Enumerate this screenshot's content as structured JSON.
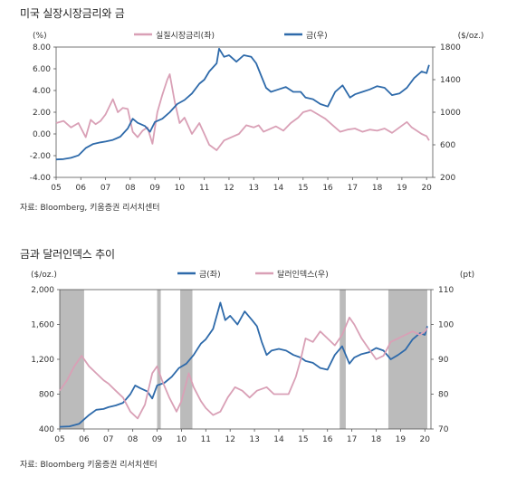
{
  "chart1": {
    "title": "미국 실장시장금리와 금",
    "source": "자료: Bloomberg, 키움증권 리서치센터",
    "left_unit": "(%)",
    "right_unit": "($/oz.)",
    "legend": {
      "series1": "실질시장금리(좌)",
      "series2": "금(우)"
    }
  },
  "chart2": {
    "title": "금과 달러인덱스 추이",
    "source": "자료: Bloomberg 키움증권 리서치센터",
    "left_unit": "($/oz.)",
    "right_unit": "(pt)",
    "legend": {
      "series1": "금(좌)",
      "series2": "달러인덱스(우)"
    }
  },
  "chart_data": [
    {
      "type": "line",
      "x_ticks": [
        "05",
        "06",
        "07",
        "08",
        "09",
        "10",
        "11",
        "12",
        "13",
        "14",
        "15",
        "16",
        "17",
        "18",
        "19",
        "20"
      ],
      "y_left_ticks": [
        "8.00",
        "6.00",
        "4.00",
        "2.00",
        "0.00",
        "-2.00",
        "-4.00"
      ],
      "y_left_range": [
        -4,
        8
      ],
      "y_right_ticks": [
        "1800",
        "1400",
        "1000",
        "600",
        "200"
      ],
      "y_right_range": [
        200,
        1800
      ],
      "colors": {
        "real_rate": "#d9a0b6",
        "gold": "#2e6aaa"
      },
      "series": [
        {
          "name": "실질시장금리(좌)",
          "axis": "left",
          "points": [
            [
              5.0,
              1.0
            ],
            [
              5.3,
              1.2
            ],
            [
              5.6,
              0.6
            ],
            [
              5.9,
              1.0
            ],
            [
              6.2,
              -0.3
            ],
            [
              6.4,
              1.3
            ],
            [
              6.6,
              0.9
            ],
            [
              6.8,
              1.2
            ],
            [
              7.0,
              1.8
            ],
            [
              7.3,
              3.2
            ],
            [
              7.5,
              2.0
            ],
            [
              7.7,
              2.4
            ],
            [
              7.9,
              2.3
            ],
            [
              8.1,
              0.2
            ],
            [
              8.3,
              -0.3
            ],
            [
              8.5,
              0.3
            ],
            [
              8.7,
              0.6
            ],
            [
              8.9,
              -0.9
            ],
            [
              9.1,
              2.0
            ],
            [
              9.3,
              3.6
            ],
            [
              9.5,
              5.0
            ],
            [
              9.6,
              5.5
            ],
            [
              9.8,
              3.0
            ],
            [
              10.0,
              1.0
            ],
            [
              10.2,
              1.5
            ],
            [
              10.5,
              0.0
            ],
            [
              10.8,
              1.0
            ],
            [
              11.0,
              0.0
            ],
            [
              11.2,
              -1.0
            ],
            [
              11.5,
              -1.5
            ],
            [
              11.8,
              -0.6
            ],
            [
              12.1,
              -0.3
            ],
            [
              12.4,
              0.0
            ],
            [
              12.7,
              0.8
            ],
            [
              13.0,
              0.6
            ],
            [
              13.2,
              0.8
            ],
            [
              13.4,
              0.2
            ],
            [
              13.6,
              0.4
            ],
            [
              13.9,
              0.7
            ],
            [
              14.2,
              0.3
            ],
            [
              14.5,
              1.0
            ],
            [
              14.8,
              1.5
            ],
            [
              15.0,
              2.0
            ],
            [
              15.3,
              2.2
            ],
            [
              15.6,
              1.8
            ],
            [
              15.9,
              1.4
            ],
            [
              16.2,
              0.8
            ],
            [
              16.5,
              0.2
            ],
            [
              16.8,
              0.4
            ],
            [
              17.1,
              0.5
            ],
            [
              17.4,
              0.2
            ],
            [
              17.7,
              0.4
            ],
            [
              18.0,
              0.3
            ],
            [
              18.3,
              0.5
            ],
            [
              18.6,
              0.1
            ],
            [
              18.9,
              0.6
            ],
            [
              19.2,
              1.1
            ],
            [
              19.4,
              0.6
            ],
            [
              19.6,
              0.3
            ],
            [
              19.8,
              0.0
            ],
            [
              20.0,
              -0.2
            ],
            [
              20.1,
              -0.6
            ]
          ]
        },
        {
          "name": "금(우)",
          "axis": "right",
          "points": [
            [
              5.0,
              420
            ],
            [
              5.3,
              425
            ],
            [
              5.6,
              440
            ],
            [
              5.9,
              470
            ],
            [
              6.2,
              560
            ],
            [
              6.5,
              610
            ],
            [
              6.8,
              630
            ],
            [
              7.0,
              640
            ],
            [
              7.3,
              660
            ],
            [
              7.6,
              700
            ],
            [
              7.9,
              800
            ],
            [
              8.1,
              920
            ],
            [
              8.3,
              870
            ],
            [
              8.6,
              830
            ],
            [
              8.8,
              760
            ],
            [
              9.0,
              880
            ],
            [
              9.3,
              920
            ],
            [
              9.6,
              1000
            ],
            [
              9.9,
              1100
            ],
            [
              10.2,
              1150
            ],
            [
              10.5,
              1230
            ],
            [
              10.8,
              1350
            ],
            [
              11.0,
              1400
            ],
            [
              11.2,
              1500
            ],
            [
              11.5,
              1600
            ],
            [
              11.6,
              1780
            ],
            [
              11.8,
              1680
            ],
            [
              12.0,
              1700
            ],
            [
              12.3,
              1620
            ],
            [
              12.6,
              1700
            ],
            [
              12.9,
              1680
            ],
            [
              13.1,
              1600
            ],
            [
              13.3,
              1450
            ],
            [
              13.5,
              1300
            ],
            [
              13.7,
              1250
            ],
            [
              14.0,
              1280
            ],
            [
              14.3,
              1310
            ],
            [
              14.6,
              1250
            ],
            [
              14.9,
              1250
            ],
            [
              15.1,
              1180
            ],
            [
              15.4,
              1160
            ],
            [
              15.7,
              1100
            ],
            [
              16.0,
              1070
            ],
            [
              16.3,
              1250
            ],
            [
              16.6,
              1330
            ],
            [
              16.9,
              1180
            ],
            [
              17.1,
              1220
            ],
            [
              17.4,
              1250
            ],
            [
              17.7,
              1280
            ],
            [
              18.0,
              1320
            ],
            [
              18.3,
              1300
            ],
            [
              18.6,
              1210
            ],
            [
              18.9,
              1230
            ],
            [
              19.2,
              1300
            ],
            [
              19.5,
              1420
            ],
            [
              19.8,
              1500
            ],
            [
              20.0,
              1480
            ],
            [
              20.1,
              1580
            ]
          ]
        }
      ]
    },
    {
      "type": "line",
      "x_ticks": [
        "05",
        "06",
        "07",
        "08",
        "09",
        "10",
        "11",
        "12",
        "13",
        "14",
        "15",
        "16",
        "17",
        "18",
        "19",
        "20"
      ],
      "y_left_ticks": [
        "2,000",
        "1,600",
        "1,200",
        "800",
        "400"
      ],
      "y_left_range": [
        400,
        2000
      ],
      "y_right_ticks": [
        "110",
        "100",
        "90",
        "80",
        "70"
      ],
      "y_right_range": [
        70,
        110
      ],
      "shaded_periods": [
        [
          5.0,
          6.0
        ],
        [
          9.0,
          9.15
        ],
        [
          9.95,
          10.45
        ],
        [
          16.5,
          16.75
        ],
        [
          18.5,
          20.1
        ]
      ],
      "colors": {
        "gold": "#2e6aaa",
        "dollar": "#d9a0b6",
        "shade": "#bbbbbb"
      },
      "series": [
        {
          "name": "금(좌)",
          "axis": "left",
          "points": [
            [
              5.0,
              425
            ],
            [
              5.4,
              430
            ],
            [
              5.8,
              460
            ],
            [
              6.2,
              560
            ],
            [
              6.5,
              620
            ],
            [
              6.8,
              630
            ],
            [
              7.0,
              650
            ],
            [
              7.3,
              670
            ],
            [
              7.6,
              700
            ],
            [
              7.9,
              800
            ],
            [
              8.1,
              900
            ],
            [
              8.3,
              870
            ],
            [
              8.6,
              830
            ],
            [
              8.8,
              750
            ],
            [
              9.0,
              900
            ],
            [
              9.3,
              930
            ],
            [
              9.6,
              1000
            ],
            [
              9.9,
              1100
            ],
            [
              10.2,
              1150
            ],
            [
              10.5,
              1250
            ],
            [
              10.8,
              1380
            ],
            [
              11.0,
              1430
            ],
            [
              11.3,
              1550
            ],
            [
              11.6,
              1850
            ],
            [
              11.8,
              1650
            ],
            [
              12.0,
              1700
            ],
            [
              12.3,
              1600
            ],
            [
              12.6,
              1750
            ],
            [
              12.9,
              1650
            ],
            [
              13.1,
              1580
            ],
            [
              13.3,
              1400
            ],
            [
              13.5,
              1250
            ],
            [
              13.7,
              1300
            ],
            [
              14.0,
              1320
            ],
            [
              14.3,
              1300
            ],
            [
              14.6,
              1250
            ],
            [
              14.9,
              1220
            ],
            [
              15.1,
              1180
            ],
            [
              15.4,
              1160
            ],
            [
              15.7,
              1100
            ],
            [
              16.0,
              1080
            ],
            [
              16.3,
              1250
            ],
            [
              16.6,
              1350
            ],
            [
              16.9,
              1150
            ],
            [
              17.1,
              1220
            ],
            [
              17.4,
              1260
            ],
            [
              17.7,
              1280
            ],
            [
              18.0,
              1330
            ],
            [
              18.3,
              1300
            ],
            [
              18.6,
              1200
            ],
            [
              18.9,
              1250
            ],
            [
              19.2,
              1310
            ],
            [
              19.5,
              1430
            ],
            [
              19.8,
              1500
            ],
            [
              20.0,
              1480
            ],
            [
              20.1,
              1580
            ]
          ]
        },
        {
          "name": "달러인덱스(우)",
          "axis": "right",
          "points": [
            [
              5.0,
              81
            ],
            [
              5.3,
              84
            ],
            [
              5.6,
              88
            ],
            [
              5.9,
              91
            ],
            [
              6.2,
              88
            ],
            [
              6.5,
              86
            ],
            [
              6.8,
              84
            ],
            [
              7.0,
              83
            ],
            [
              7.3,
              81
            ],
            [
              7.6,
              79
            ],
            [
              7.9,
              75
            ],
            [
              8.2,
              73
            ],
            [
              8.5,
              77
            ],
            [
              8.8,
              86
            ],
            [
              9.0,
              88
            ],
            [
              9.2,
              84
            ],
            [
              9.5,
              79
            ],
            [
              9.8,
              75
            ],
            [
              10.0,
              78
            ],
            [
              10.3,
              86
            ],
            [
              10.5,
              82
            ],
            [
              10.8,
              78
            ],
            [
              11.0,
              76
            ],
            [
              11.3,
              74
            ],
            [
              11.6,
              75
            ],
            [
              11.9,
              79
            ],
            [
              12.2,
              82
            ],
            [
              12.5,
              81
            ],
            [
              12.8,
              79
            ],
            [
              13.1,
              81
            ],
            [
              13.5,
              82
            ],
            [
              13.8,
              80
            ],
            [
              14.1,
              80
            ],
            [
              14.4,
              80
            ],
            [
              14.7,
              85
            ],
            [
              14.9,
              90
            ],
            [
              15.1,
              96
            ],
            [
              15.4,
              95
            ],
            [
              15.7,
              98
            ],
            [
              16.0,
              96
            ],
            [
              16.3,
              94
            ],
            [
              16.6,
              97
            ],
            [
              16.9,
              102
            ],
            [
              17.1,
              100
            ],
            [
              17.4,
              96
            ],
            [
              17.7,
              93
            ],
            [
              18.0,
              90
            ],
            [
              18.3,
              91
            ],
            [
              18.6,
              95
            ],
            [
              18.9,
              96
            ],
            [
              19.2,
              97
            ],
            [
              19.5,
              98
            ],
            [
              19.8,
              97
            ],
            [
              20.0,
              98
            ],
            [
              20.1,
              99
            ]
          ]
        }
      ]
    }
  ]
}
